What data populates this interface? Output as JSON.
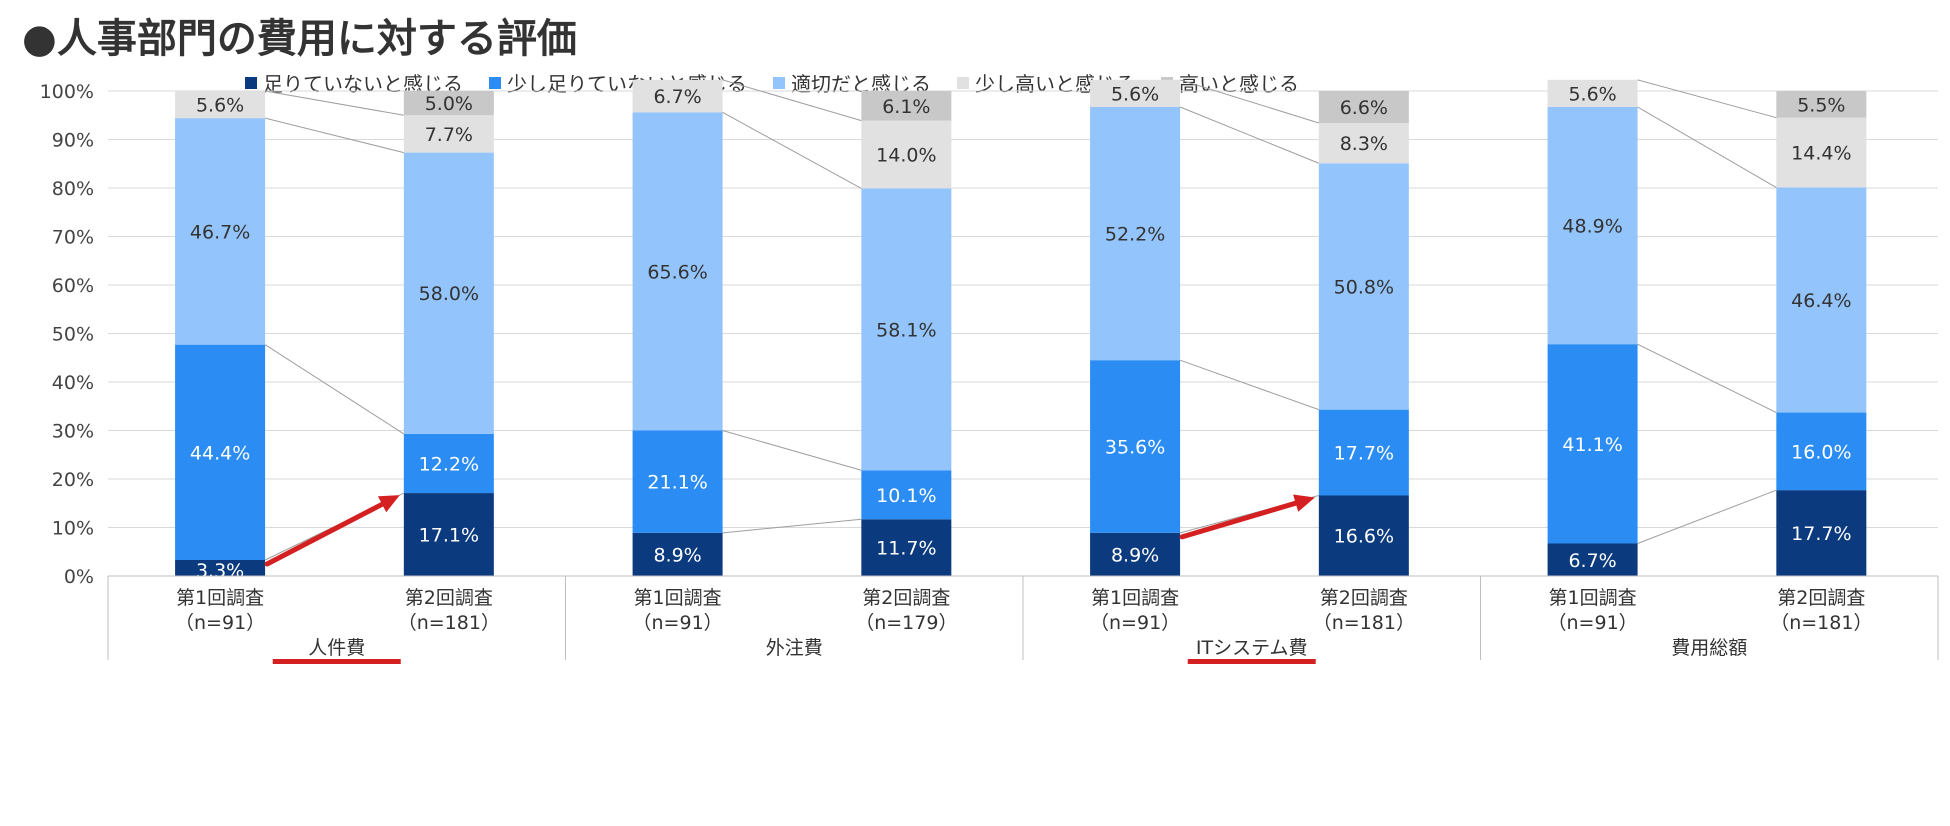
{
  "title": "●人事部門の費用に対する評価",
  "chart_data": {
    "type": "bar",
    "stacked": true,
    "ylim": [
      0,
      100
    ],
    "yticks": [
      "0%",
      "10%",
      "20%",
      "30%",
      "40%",
      "50%",
      "60%",
      "70%",
      "80%",
      "90%",
      "100%"
    ],
    "grid": true,
    "legend_position": "top",
    "groups": [
      {
        "name": "人件費",
        "highlighted": true
      },
      {
        "name": "外注費",
        "highlighted": false
      },
      {
        "name": "ITシステム費",
        "highlighted": true
      },
      {
        "name": "費用総額",
        "highlighted": false
      }
    ],
    "categories": [
      {
        "line1": "第1回調査",
        "line2": "（n=91）",
        "group": 0
      },
      {
        "line1": "第2回調査",
        "line2": "（n=181）",
        "group": 0
      },
      {
        "line1": "第1回調査",
        "line2": "（n=91）",
        "group": 1
      },
      {
        "line1": "第2回調査",
        "line2": "（n=179）",
        "group": 1
      },
      {
        "line1": "第1回調査",
        "line2": "（n=91）",
        "group": 2
      },
      {
        "line1": "第2回調査",
        "line2": "（n=181）",
        "group": 2
      },
      {
        "line1": "第1回調査",
        "line2": "（n=91）",
        "group": 3
      },
      {
        "line1": "第2回調査",
        "line2": "（n=181）",
        "group": 3
      }
    ],
    "series": [
      {
        "name": "足りていないと感じる",
        "color": "#0b3a7e",
        "label_color": "#ffffff",
        "values": [
          3.3,
          17.1,
          8.9,
          11.7,
          8.9,
          16.6,
          6.7,
          17.7
        ],
        "labels": [
          "3.3%",
          "17.1%",
          "8.9%",
          "11.7%",
          "8.9%",
          "16.6%",
          "6.7%",
          "17.7%"
        ]
      },
      {
        "name": "少し足りていないと感じる",
        "color": "#2b8cf4",
        "label_color": "#ffffff",
        "values": [
          44.4,
          12.2,
          21.1,
          10.1,
          35.6,
          17.7,
          41.1,
          16.0
        ],
        "labels": [
          "44.4%",
          "12.2%",
          "21.1%",
          "10.1%",
          "35.6%",
          "17.7%",
          "41.1%",
          "16.0%"
        ]
      },
      {
        "name": "適切だと感じる",
        "color": "#93c4fb",
        "label_color": "#333333",
        "values": [
          46.7,
          58.0,
          65.6,
          58.1,
          52.2,
          50.8,
          48.9,
          46.4
        ],
        "labels": [
          "46.7%",
          "58.0%",
          "65.6%",
          "58.1%",
          "52.2%",
          "50.8%",
          "48.9%",
          "46.4%"
        ]
      },
      {
        "name": "少し高いと感じる",
        "color": "#e1e1e1",
        "label_color": "#333333",
        "values": [
          5.6,
          7.7,
          6.7,
          14.0,
          5.6,
          8.3,
          5.6,
          14.4
        ],
        "labels": [
          "5.6%",
          "7.7%",
          "6.7%",
          "14.0%",
          "5.6%",
          "8.3%",
          "5.6%",
          "14.4%"
        ]
      },
      {
        "name": "高いと感じる",
        "color": "#c8c8c8",
        "label_color": "#333333",
        "values": [
          0,
          5.0,
          0,
          6.1,
          0,
          6.6,
          0,
          5.5
        ],
        "labels": [
          "",
          "5.0%",
          "",
          "6.1%",
          "",
          "6.6%",
          "",
          "5.5%"
        ]
      }
    ],
    "arrows": [
      {
        "from_bar": 0,
        "to_bar": 1,
        "color": "#d42020"
      },
      {
        "from_bar": 4,
        "to_bar": 5,
        "color": "#d42020"
      }
    ],
    "accent_color": "#d42020"
  }
}
